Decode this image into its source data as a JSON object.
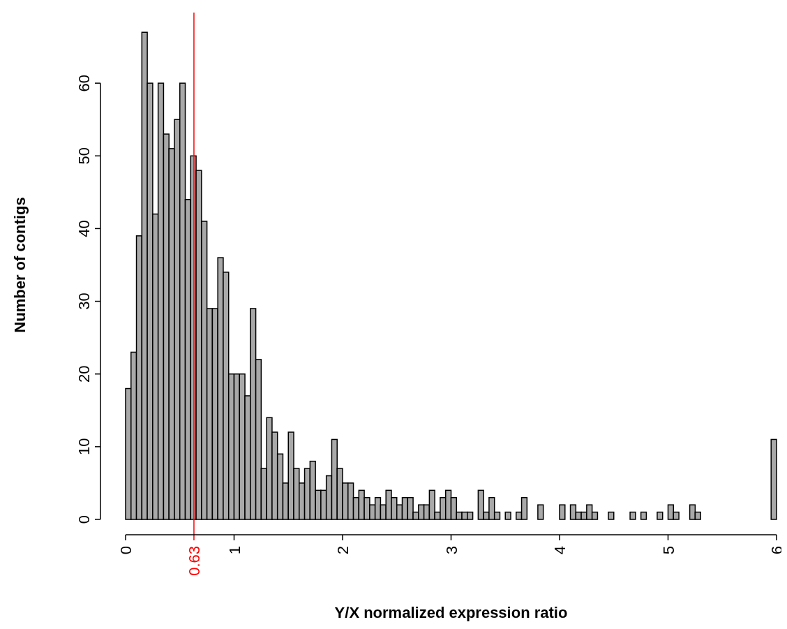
{
  "chart_data": {
    "type": "histogram",
    "xlabel": "Y/X normalized expression ratio",
    "ylabel": "Number of contigs",
    "bins": [
      0,
      0.05,
      0.1,
      0.15,
      0.2,
      0.25,
      0.3,
      0.35,
      0.4,
      0.45,
      0.5,
      0.55,
      0.6,
      0.65,
      0.7,
      0.75,
      0.8,
      0.85,
      0.9,
      0.95,
      1,
      1.05,
      1.1,
      1.15,
      1.2,
      1.25,
      1.3,
      1.35,
      1.4,
      1.45,
      1.5,
      1.55,
      1.6,
      1.65,
      1.7,
      1.75,
      1.8,
      1.85,
      1.9,
      1.95,
      2,
      2.05,
      2.1,
      2.15,
      2.2,
      2.25,
      2.3,
      2.35,
      2.4,
      2.45,
      2.5,
      2.55,
      2.6,
      2.65,
      2.7,
      2.75,
      2.8,
      2.85,
      2.9,
      2.95,
      3,
      3.05,
      3.1,
      3.15,
      3.2,
      3.25,
      3.3,
      3.35,
      3.4,
      3.45,
      3.5,
      3.55,
      3.6,
      3.65,
      3.7,
      3.75,
      3.8,
      3.85,
      3.9,
      3.95,
      4,
      4.05,
      4.1,
      4.15,
      4.2,
      4.25,
      4.3,
      4.35,
      4.4,
      4.45,
      4.5,
      4.55,
      4.6,
      4.65,
      4.7,
      4.75,
      4.8,
      4.85,
      4.9,
      4.95,
      5,
      5.05,
      5.1,
      5.15,
      5.2,
      5.25,
      5.3,
      5.35,
      5.4,
      5.45,
      5.5,
      5.55,
      5.6,
      5.65,
      5.7,
      5.75,
      5.8,
      5.85,
      5.9,
      5.95,
      6
    ],
    "values": [
      18,
      23,
      39,
      67,
      60,
      42,
      60,
      53,
      51,
      55,
      60,
      44,
      50,
      48,
      41,
      29,
      29,
      36,
      34,
      20,
      20,
      20,
      17,
      29,
      22,
      7,
      14,
      12,
      9,
      5,
      12,
      7,
      5,
      7,
      8,
      4,
      4,
      6,
      11,
      7,
      5,
      5,
      3,
      4,
      3,
      2,
      3,
      2,
      4,
      3,
      2,
      3,
      3,
      1,
      2,
      2,
      4,
      1,
      3,
      4,
      3,
      1,
      1,
      1,
      0,
      4,
      1,
      3,
      1,
      0,
      1,
      0,
      1,
      3,
      0,
      0,
      2,
      0,
      0,
      0,
      2,
      0,
      2,
      1,
      1,
      2,
      1,
      0,
      0,
      1,
      0,
      0,
      0,
      1,
      0,
      1,
      0,
      0,
      1,
      0,
      2,
      1,
      0,
      0,
      2,
      1,
      0,
      0,
      0,
      0,
      0,
      0,
      0,
      0,
      0,
      0,
      0,
      0,
      0,
      11
    ],
    "color": "#a9a9a9",
    "xlim": [
      0,
      6
    ],
    "xticks": [
      0,
      1,
      2,
      3,
      4,
      5,
      6
    ],
    "ylim": [
      0,
      70
    ],
    "yticks": [
      0,
      10,
      20,
      30,
      40,
      50,
      60
    ],
    "ref_lines": [
      {
        "axis": "x",
        "value": 0.63,
        "label": "0.63",
        "color": "#ff0000"
      }
    ],
    "grid": false
  }
}
